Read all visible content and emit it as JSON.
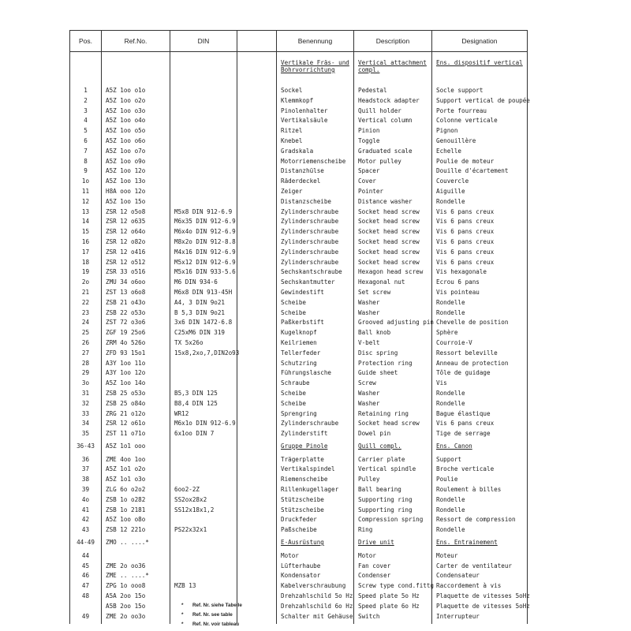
{
  "header": {
    "pos": "Pos.",
    "ref": "Ref.No.",
    "din": "DIN",
    "blank": "",
    "de": "Benennung",
    "en": "Description",
    "fr": "Designation"
  },
  "rows": [
    {
      "pos": "",
      "ref": "",
      "din": "",
      "de": "Vertikale Fräs- und\nBohrvorrichtung",
      "en": "Vertical attachment\ncompl.",
      "fr": "Ens. dispositif vertical",
      "section": true
    },
    {
      "pos": "1",
      "ref": "A5Z 1oo o1o",
      "din": "",
      "de": "Sockel",
      "en": "Pedestal",
      "fr": "Socle support"
    },
    {
      "pos": "2",
      "ref": "A5Z 1oo o2o",
      "din": "",
      "de": "Klemmkopf",
      "en": "Headstock adapter",
      "fr": "Support vertical de poupée"
    },
    {
      "pos": "3",
      "ref": "A5Z 1oo o3o",
      "din": "",
      "de": "Pinolenhalter",
      "en": "Quill holder",
      "fr": "Porte fourreau"
    },
    {
      "pos": "4",
      "ref": "A5Z 1oo o4o",
      "din": "",
      "de": "Vertikalsäule",
      "en": "Vertical column",
      "fr": "Colonne verticale"
    },
    {
      "pos": "5",
      "ref": "A5Z 1oo o5o",
      "din": "",
      "de": "Ritzel",
      "en": "Pinion",
      "fr": "Pignon"
    },
    {
      "pos": "6",
      "ref": "A5Z 1oo o6o",
      "din": "",
      "de": "Knebel",
      "en": "Toggle",
      "fr": "Genouillère"
    },
    {
      "pos": "7",
      "ref": "A5Z 1oo o7o",
      "din": "",
      "de": "Gradskala",
      "en": "Graduated scale",
      "fr": "Echelle"
    },
    {
      "pos": "8",
      "ref": "A5Z 1oo o9o",
      "din": "",
      "de": "Motorriemenscheibe",
      "en": "Motor pulley",
      "fr": "Poulie de moteur"
    },
    {
      "pos": "9",
      "ref": "A5Z 1oo 12o",
      "din": "",
      "de": "Distanzhülse",
      "en": "Spacer",
      "fr": "Douille d'écartement"
    },
    {
      "pos": "1o",
      "ref": "A5Z 1oo 13o",
      "din": "",
      "de": "Räderdeckel",
      "en": "Cover",
      "fr": "Couvercle"
    },
    {
      "pos": "11",
      "ref": "H8A ooo 12o",
      "din": "",
      "de": "Zeiger",
      "en": "Pointer",
      "fr": "Aiguille"
    },
    {
      "pos": "12",
      "ref": "A5Z 1oo 15o",
      "din": "",
      "de": "Distanzscheibe",
      "en": "Distance washer",
      "fr": "Rondelle"
    },
    {
      "pos": "13",
      "ref": "ZSR 12 o5o8",
      "din": "M5x8 DIN 912-6.9",
      "de": "Zylinderschraube",
      "en": "Socket head screw",
      "fr": "Vis 6 pans creux"
    },
    {
      "pos": "14",
      "ref": "ZSR 12 o635",
      "din": "M6x35 DIN 912-6.9",
      "de": "Zylinderschraube",
      "en": "Socket head screw",
      "fr": "Vis 6 pans creux"
    },
    {
      "pos": "15",
      "ref": "ZSR 12 o64o",
      "din": "M6x4o DIN 912-6.9",
      "de": "Zylinderschraube",
      "en": "Socket head screw",
      "fr": "Vis 6 pans creux"
    },
    {
      "pos": "16",
      "ref": "ZSR 12 o82o",
      "din": "M8x2o DIN 912-8.8",
      "de": "Zylinderschraube",
      "en": "Socket head screw",
      "fr": "Vis 6 pans creux"
    },
    {
      "pos": "17",
      "ref": "ZSR 12 o416",
      "din": "M4x16 DIN 912-6.9",
      "de": "Zylinderschraube",
      "en": "Socket head screw",
      "fr": "Vis 6 pans creux"
    },
    {
      "pos": "18",
      "ref": "ZSR 12 o512",
      "din": "M5x12 DIN 912-6.9",
      "de": "Zylinderschraube",
      "en": "Socket head screw",
      "fr": "Vis 6 pans creux"
    },
    {
      "pos": "19",
      "ref": "ZSR 33 o516",
      "din": "M5x16 DIN 933-5.6",
      "de": "Sechskantschraube",
      "en": "Hexagon head screw",
      "fr": "Vis hexagonale"
    },
    {
      "pos": "2o",
      "ref": "ZMU 34 o6oo",
      "din": "M6 DIN 934-6",
      "de": "Sechskantmutter",
      "en": "Hexagonal nut",
      "fr": "Ecrou 6 pans"
    },
    {
      "pos": "21",
      "ref": "ZST 13 o6o8",
      "din": "M6x8 DIN 913-45H",
      "de": "Gewindestift",
      "en": "Set screw",
      "fr": "Vis pointeau"
    },
    {
      "pos": "22",
      "ref": "ZSB 21 o43o",
      "din": "A4, 3 DIN 9o21",
      "de": "Scheibe",
      "en": "Washer",
      "fr": "Rondelle"
    },
    {
      "pos": "23",
      "ref": "ZSB 22 o53o",
      "din": "B 5,3 DIN 9o21",
      "de": "Scheibe",
      "en": "Washer",
      "fr": "Rondelle"
    },
    {
      "pos": "24",
      "ref": "ZST 72 o3o6",
      "din": "3x6 DIN 1472-6.8",
      "de": "Paßkerbstift",
      "en": "Grooved adjusting pin",
      "fr": "Chevelle de position"
    },
    {
      "pos": "25",
      "ref": "ZGF 19 25o6",
      "din": "C25xM6 DIN 319",
      "de": "Kugelknopf",
      "en": "Ball knob",
      "fr": "Sphère"
    },
    {
      "pos": "26",
      "ref": "ZRM 4o 526o",
      "din": "TX 5x26o",
      "de": "Keilriemen",
      "en": "V-belt",
      "fr": "Courroie-V"
    },
    {
      "pos": "27",
      "ref": "ZFD 93 15o1",
      "din": "15x8,2xo,7,DIN2o93",
      "de": "Tellerfeder",
      "en": "Disc spring",
      "fr": "Ressort beleville"
    },
    {
      "pos": "28",
      "ref": "A3Y 1oo 11o",
      "din": "",
      "de": "Schutzring",
      "en": "Protection ring",
      "fr": "Anneau de protection"
    },
    {
      "pos": "29",
      "ref": "A3Y 1oo 12o",
      "din": "",
      "de": "Führungslasche",
      "en": "Guide sheet",
      "fr": "Tôle de guidage"
    },
    {
      "pos": "3o",
      "ref": "A5Z 1oo 14o",
      "din": "",
      "de": "Schraube",
      "en": "Screw",
      "fr": "Vis"
    },
    {
      "pos": "31",
      "ref": "ZSB 25 o53o",
      "din": "B5,3 DIN 125",
      "de": "Scheibe",
      "en": "Washer",
      "fr": "Rondelle"
    },
    {
      "pos": "32",
      "ref": "ZSB 25 o84o",
      "din": "B8,4 DIN 125",
      "de": "Scheibe",
      "en": "Washer",
      "fr": "Rondelle"
    },
    {
      "pos": "33",
      "ref": "ZRG 21 o12o",
      "din": "WR12",
      "de": "Sprengring",
      "en": "Retaining ring",
      "fr": "Bague élastique"
    },
    {
      "pos": "34",
      "ref": "ZSR 12 o61o",
      "din": "M6x1o DIN 912-6.9",
      "de": "Zylinderschraube",
      "en": "Socket head screw",
      "fr": "Vis 6 pans creux"
    },
    {
      "pos": "35",
      "ref": "ZST 11 o71o",
      "din": "6x1oo DIN 7",
      "de": "Zylinderstift",
      "en": "Dowel pin",
      "fr": "Tige de serrage"
    },
    {
      "pos": "36-43",
      "ref": "A5Z 1o1 ooo",
      "din": "",
      "de": "Gruppe Pinole",
      "en": "Quill compl.",
      "fr": "Ens. Canon",
      "section": true
    },
    {
      "pos": "36",
      "ref": "ZME 4oo 1oo",
      "din": "",
      "de": "Trägerplatte",
      "en": "Carrier plate",
      "fr": "Support"
    },
    {
      "pos": "37",
      "ref": "A5Z 1o1 o2o",
      "din": "",
      "de": "Vertikalspindel",
      "en": "Vertical spindle",
      "fr": "Broche verticale"
    },
    {
      "pos": "38",
      "ref": "A5Z 1o1 o3o",
      "din": "",
      "de": "Riemenscheibe",
      "en": "Pulley",
      "fr": "Poulie"
    },
    {
      "pos": "39",
      "ref": "ZLG 6o o2o2",
      "din": "6oo2-2Z",
      "de": "Rillenkugellager",
      "en": "Ball bearing",
      "fr": "Roulement à billes"
    },
    {
      "pos": "4o",
      "ref": "ZSB 1o o282",
      "din": "SS2ox28x2",
      "de": "Stützscheibe",
      "en": "Supporting ring",
      "fr": "Rondelle"
    },
    {
      "pos": "41",
      "ref": "ZSB 1o 2181",
      "din": "SS12x18x1,2",
      "de": "Stützscheibe",
      "en": "Supporting ring",
      "fr": "Rondelle"
    },
    {
      "pos": "42",
      "ref": "A5Z 1oo o8o",
      "din": "",
      "de": "Druckfeder",
      "en": "Compression spring",
      "fr": "Ressort de compression"
    },
    {
      "pos": "43",
      "ref": "ZSB 12 221o",
      "din": "PS22x32x1",
      "de": "Paßscheibe",
      "en": "Ring",
      "fr": "Rondelle"
    },
    {
      "pos": "44-49",
      "ref": "ZMO .. ....*",
      "din": "",
      "de": "E-Ausrüstung",
      "en": "Drive unit",
      "fr": "Ens. Entrainement",
      "section": true
    },
    {
      "pos": "44",
      "ref": "",
      "din": "",
      "de": "Motor",
      "en": "Motor",
      "fr": "Moteur"
    },
    {
      "pos": "45",
      "ref": "ZME 2o oo36",
      "din": "",
      "de": "Lüfterhaube",
      "en": "Fan cover",
      "fr": "Carter de ventilateur"
    },
    {
      "pos": "46",
      "ref": "ZME .. ....*",
      "din": "",
      "de": "Kondensator",
      "en": "Condenser",
      "fr": "Condensateur"
    },
    {
      "pos": "47",
      "ref": "ZPG 1o ooo8",
      "din": "MZB 13",
      "de": "Kabelverschraubung",
      "en": "Screw type cond.fittg",
      "fr": "Raccordement à vis"
    },
    {
      "pos": "48",
      "ref": "A5A 2oo 15o",
      "din": "",
      "de": "Drehzahlschild 5o Hz",
      "en": "Speed plate 5o Hz",
      "fr": "Plaquette de vitesses 5oHz"
    },
    {
      "pos": "",
      "ref": "A5B 2oo 15o",
      "din": "",
      "de": "Drehzahlschild 6o Hz",
      "en": "Speed plate 6o Hz",
      "fr": "Plaquette de vitesses 5oHz"
    },
    {
      "pos": "49",
      "ref": "ZME 2o oo3o",
      "din": "",
      "de": "Schalter mit Gehäuse",
      "en": "Switch",
      "fr": "Interrupteur"
    }
  ],
  "footnotes": [
    {
      "mark": "*",
      "text": "Ref. Nr. siehe Tabelle"
    },
    {
      "mark": "*",
      "text": "Ref. Nr. see table"
    },
    {
      "mark": "*",
      "text": "Ref. Nr. voir tableau"
    }
  ]
}
